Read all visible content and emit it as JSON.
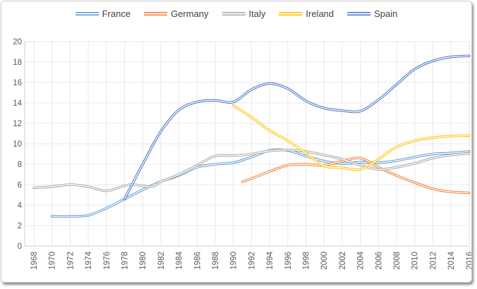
{
  "chart_data": {
    "type": "line",
    "title": "",
    "legend_position": "top",
    "grid": true,
    "smooth_lines": true,
    "x_axis": {
      "range": [
        1968,
        2016
      ],
      "tick_interval": 2,
      "label_rotation_deg": -90,
      "tick_labels": [
        "1968",
        "1970",
        "1972",
        "1974",
        "1976",
        "1978",
        "1980",
        "1982",
        "1984",
        "1986",
        "1988",
        "1990",
        "1992",
        "1994",
        "1996",
        "1998",
        "2000",
        "2002",
        "2004",
        "2006",
        "2008",
        "2010",
        "2012",
        "2014",
        "2016"
      ]
    },
    "y_axis": {
      "range": [
        0,
        20
      ],
      "tick_interval": 2,
      "tick_labels": [
        "0",
        "2",
        "4",
        "6",
        "8",
        "10",
        "12",
        "14",
        "16",
        "18",
        "20"
      ]
    },
    "series": [
      {
        "name": "France",
        "color": "#5B9BD5",
        "points": [
          [
            1970,
            2.9
          ],
          [
            1972,
            2.9
          ],
          [
            1974,
            3.0
          ],
          [
            1976,
            3.7
          ],
          [
            1978,
            4.6
          ],
          [
            1980,
            5.5
          ],
          [
            1982,
            6.3
          ],
          [
            1984,
            6.9
          ],
          [
            1986,
            7.7
          ],
          [
            1988,
            8.0
          ],
          [
            1990,
            8.15
          ],
          [
            1992,
            8.7
          ],
          [
            1994,
            9.35
          ],
          [
            1996,
            9.35
          ],
          [
            1998,
            8.8
          ],
          [
            2000,
            8.3
          ],
          [
            2002,
            8.05
          ],
          [
            2004,
            8.2
          ],
          [
            2006,
            8.15
          ],
          [
            2008,
            8.35
          ],
          [
            2010,
            8.7
          ],
          [
            2012,
            9.0
          ],
          [
            2014,
            9.1
          ],
          [
            2016,
            9.25
          ]
        ]
      },
      {
        "name": "Germany",
        "color": "#ED7D31",
        "points": [
          [
            1991,
            6.3
          ],
          [
            1992,
            6.6
          ],
          [
            1994,
            7.3
          ],
          [
            1996,
            7.9
          ],
          [
            1998,
            8.0
          ],
          [
            2000,
            7.9
          ],
          [
            2002,
            8.3
          ],
          [
            2004,
            8.6
          ],
          [
            2006,
            7.7
          ],
          [
            2008,
            6.9
          ],
          [
            2010,
            6.2
          ],
          [
            2012,
            5.6
          ],
          [
            2014,
            5.3
          ],
          [
            2016,
            5.2
          ]
        ]
      },
      {
        "name": "Italy",
        "color": "#A5A5A5",
        "points": [
          [
            1968,
            5.7
          ],
          [
            1970,
            5.8
          ],
          [
            1972,
            6.0
          ],
          [
            1974,
            5.8
          ],
          [
            1976,
            5.4
          ],
          [
            1978,
            5.9
          ],
          [
            1979,
            6.0
          ],
          [
            1981,
            5.8
          ],
          [
            1982,
            6.3
          ],
          [
            1984,
            7.0
          ],
          [
            1986,
            7.9
          ],
          [
            1988,
            8.8
          ],
          [
            1990,
            8.85
          ],
          [
            1992,
            9.0
          ],
          [
            1994,
            9.3
          ],
          [
            1996,
            9.4
          ],
          [
            1998,
            9.25
          ],
          [
            2000,
            8.9
          ],
          [
            2002,
            8.5
          ],
          [
            2004,
            7.9
          ],
          [
            2006,
            7.5
          ],
          [
            2008,
            7.7
          ],
          [
            2010,
            8.1
          ],
          [
            2012,
            8.6
          ],
          [
            2014,
            8.9
          ],
          [
            2016,
            9.05
          ]
        ]
      },
      {
        "name": "Ireland",
        "color": "#FFC000",
        "points": [
          [
            1990,
            13.75
          ],
          [
            1992,
            12.6
          ],
          [
            1994,
            11.3
          ],
          [
            1996,
            10.3
          ],
          [
            1998,
            9.1
          ],
          [
            2000,
            7.85
          ],
          [
            2002,
            7.65
          ],
          [
            2004,
            7.5
          ],
          [
            2006,
            8.5
          ],
          [
            2008,
            9.7
          ],
          [
            2010,
            10.3
          ],
          [
            2012,
            10.6
          ],
          [
            2014,
            10.75
          ],
          [
            2016,
            10.8
          ]
        ]
      },
      {
        "name": "Spain",
        "color": "#4472C4",
        "points": [
          [
            1978,
            4.6
          ],
          [
            1980,
            8.0
          ],
          [
            1982,
            11.2
          ],
          [
            1984,
            13.3
          ],
          [
            1986,
            14.1
          ],
          [
            1988,
            14.25
          ],
          [
            1990,
            14.1
          ],
          [
            1992,
            15.3
          ],
          [
            1994,
            15.9
          ],
          [
            1996,
            15.4
          ],
          [
            1998,
            14.2
          ],
          [
            2000,
            13.5
          ],
          [
            2002,
            13.25
          ],
          [
            2004,
            13.2
          ],
          [
            2006,
            14.3
          ],
          [
            2008,
            15.8
          ],
          [
            2010,
            17.3
          ],
          [
            2012,
            18.1
          ],
          [
            2014,
            18.5
          ],
          [
            2016,
            18.6
          ]
        ]
      }
    ],
    "styles": {
      "grid_color": "#E8E8E8",
      "axis_color": "#CFCFCF",
      "tick_label_color": "#595959",
      "legend_text_color": "#404040",
      "line_core_color": "#FFFFFF",
      "frame_border_color": "#C9C9C9"
    }
  },
  "legend": {
    "items": [
      {
        "label": "France",
        "color": "#5B9BD5"
      },
      {
        "label": "Germany",
        "color": "#ED7D31"
      },
      {
        "label": "Italy",
        "color": "#A5A5A5"
      },
      {
        "label": "Ireland",
        "color": "#FFC000"
      },
      {
        "label": "Spain",
        "color": "#4472C4"
      }
    ]
  }
}
